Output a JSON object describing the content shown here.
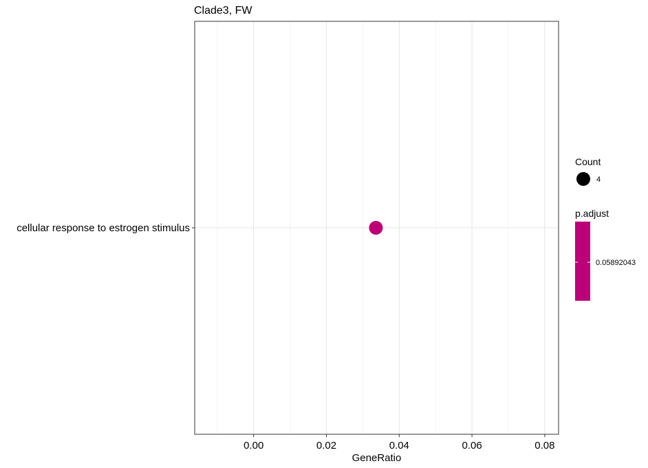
{
  "chart_data": {
    "type": "scatter",
    "title": "Clade3, FW",
    "xlabel": "GeneRatio",
    "ylabel": "",
    "xlim": [
      -0.0162,
      0.0838
    ],
    "x_ticks": [
      "0.00",
      "0.02",
      "0.04",
      "0.06",
      "0.08"
    ],
    "x_tick_values": [
      0.0,
      0.02,
      0.04,
      0.06,
      0.08
    ],
    "categories": [
      "cellular response to estrogen stimulus"
    ],
    "points": [
      {
        "term": "cellular response to estrogen stimulus",
        "x": 0.0336,
        "count": 4,
        "p_adjust": 0.05892043,
        "color": "#BC0077"
      }
    ],
    "grid": true,
    "legend_placement": "right",
    "legend_count": {
      "title": "Count",
      "entries": [
        "4"
      ]
    },
    "legend_padjust": {
      "title": "p.adjust",
      "labels": [
        "0.05892043"
      ],
      "color": "#BC0077"
    }
  }
}
